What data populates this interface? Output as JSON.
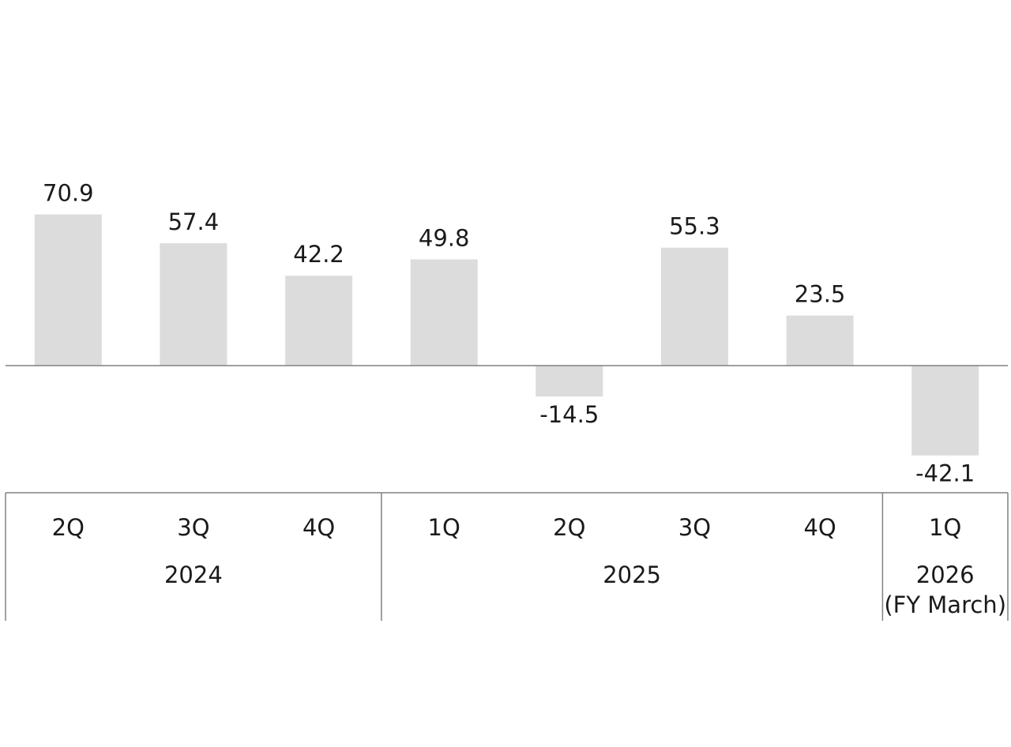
{
  "chart_data": {
    "type": "bar",
    "categories": [
      "2Q",
      "3Q",
      "4Q",
      "1Q",
      "2Q",
      "3Q",
      "4Q",
      "1Q"
    ],
    "values": [
      70.9,
      57.4,
      42.2,
      49.8,
      -14.5,
      55.3,
      23.5,
      -42.1
    ],
    "value_labels": [
      "70.9",
      "57.4",
      "42.2",
      "49.8",
      "-14.5",
      "55.3",
      "23.5",
      "-42.1"
    ],
    "groups": [
      {
        "label": "2024",
        "sublabel": "",
        "count": 3
      },
      {
        "label": "2025",
        "sublabel": "",
        "count": 4
      },
      {
        "label": "2026",
        "sublabel": "(FY March)",
        "count": 1
      }
    ],
    "colors": {
      "bar": "#dcdcdc",
      "baseline": "#808080",
      "divider": "#808080",
      "text": "#1a1a1a"
    },
    "grid": false,
    "legend": "none"
  }
}
